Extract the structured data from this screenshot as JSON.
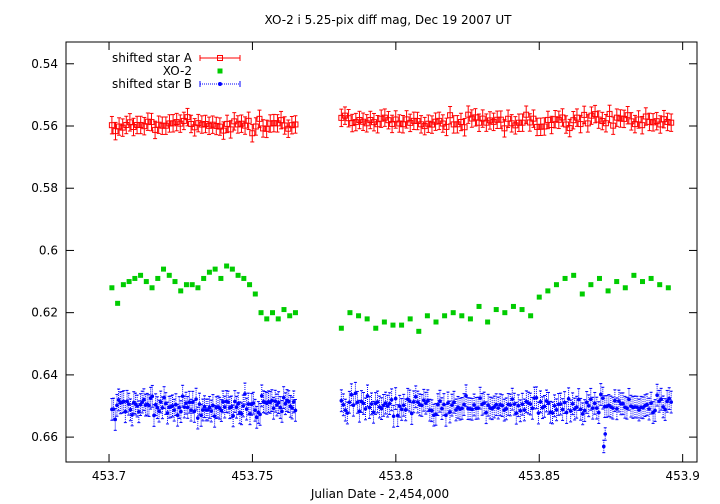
{
  "chart_data": {
    "type": "scatter",
    "title": "XO-2 i 5.25-pix diff mag, Dec 19 2007 UT",
    "xlabel": "Julian Date - 2,454,000",
    "ylabel": "",
    "xlim": [
      453.685,
      453.905
    ],
    "ylim": [
      0.533,
      0.668
    ],
    "y_inverted": true,
    "grid": false,
    "legend_position": "top-left",
    "x_ticks": [
      {
        "value": 453.7,
        "label": "453.7"
      },
      {
        "value": 453.75,
        "label": "453.75"
      },
      {
        "value": 453.8,
        "label": "453.8"
      },
      {
        "value": 453.85,
        "label": "453.85"
      },
      {
        "value": 453.9,
        "label": "453.9"
      }
    ],
    "y_ticks": [
      {
        "value": 0.54,
        "label": "0.54"
      },
      {
        "value": 0.56,
        "label": "0.56"
      },
      {
        "value": 0.58,
        "label": "0.58"
      },
      {
        "value": 0.6,
        "label": "0.6"
      },
      {
        "value": 0.62,
        "label": "0.62"
      },
      {
        "value": 0.64,
        "label": "0.64"
      },
      {
        "value": 0.66,
        "label": "0.66"
      }
    ],
    "series": [
      {
        "name": "shifted star A",
        "color": "#ff0000",
        "marker": "open-square-errorbar",
        "segments": [
          {
            "x_start": 453.701,
            "x_end": 453.765,
            "n": 52,
            "mean": 0.5595,
            "noise": 0.0022,
            "err": 0.0028
          },
          {
            "x_start": 453.781,
            "x_end": 453.896,
            "n": 92,
            "mean": 0.5585,
            "noise": 0.0018,
            "err": 0.0028
          }
        ]
      },
      {
        "name": "XO-2",
        "color": "#00cc00",
        "marker": "filled-square",
        "points": [
          [
            453.701,
            0.612
          ],
          [
            453.703,
            0.617
          ],
          [
            453.705,
            0.611
          ],
          [
            453.707,
            0.61
          ],
          [
            453.709,
            0.609
          ],
          [
            453.711,
            0.608
          ],
          [
            453.713,
            0.61
          ],
          [
            453.715,
            0.612
          ],
          [
            453.717,
            0.609
          ],
          [
            453.719,
            0.606
          ],
          [
            453.721,
            0.608
          ],
          [
            453.723,
            0.61
          ],
          [
            453.725,
            0.613
          ],
          [
            453.727,
            0.611
          ],
          [
            453.729,
            0.611
          ],
          [
            453.731,
            0.612
          ],
          [
            453.733,
            0.609
          ],
          [
            453.735,
            0.607
          ],
          [
            453.737,
            0.606
          ],
          [
            453.739,
            0.609
          ],
          [
            453.741,
            0.605
          ],
          [
            453.743,
            0.606
          ],
          [
            453.745,
            0.608
          ],
          [
            453.747,
            0.609
          ],
          [
            453.749,
            0.611
          ],
          [
            453.751,
            0.614
          ],
          [
            453.753,
            0.62
          ],
          [
            453.755,
            0.622
          ],
          [
            453.757,
            0.62
          ],
          [
            453.759,
            0.622
          ],
          [
            453.761,
            0.619
          ],
          [
            453.763,
            0.621
          ],
          [
            453.765,
            0.62
          ],
          [
            453.781,
            0.625
          ],
          [
            453.784,
            0.62
          ],
          [
            453.787,
            0.621
          ],
          [
            453.79,
            0.622
          ],
          [
            453.793,
            0.625
          ],
          [
            453.796,
            0.623
          ],
          [
            453.799,
            0.624
          ],
          [
            453.802,
            0.624
          ],
          [
            453.805,
            0.622
          ],
          [
            453.808,
            0.626
          ],
          [
            453.811,
            0.621
          ],
          [
            453.814,
            0.623
          ],
          [
            453.817,
            0.621
          ],
          [
            453.82,
            0.62
          ],
          [
            453.823,
            0.621
          ],
          [
            453.826,
            0.622
          ],
          [
            453.829,
            0.618
          ],
          [
            453.832,
            0.623
          ],
          [
            453.835,
            0.619
          ],
          [
            453.838,
            0.62
          ],
          [
            453.841,
            0.618
          ],
          [
            453.844,
            0.619
          ],
          [
            453.847,
            0.621
          ],
          [
            453.85,
            0.615
          ],
          [
            453.853,
            0.613
          ],
          [
            453.856,
            0.611
          ],
          [
            453.859,
            0.609
          ],
          [
            453.862,
            0.608
          ],
          [
            453.865,
            0.614
          ],
          [
            453.868,
            0.611
          ],
          [
            453.871,
            0.609
          ],
          [
            453.874,
            0.613
          ],
          [
            453.877,
            0.61
          ],
          [
            453.88,
            0.612
          ],
          [
            453.883,
            0.608
          ],
          [
            453.886,
            0.61
          ],
          [
            453.889,
            0.609
          ],
          [
            453.892,
            0.611
          ],
          [
            453.895,
            0.612
          ]
        ]
      },
      {
        "name": "shifted star B",
        "color": "#0000ff",
        "marker": "filled-circle-errorbar",
        "segments": [
          {
            "x_start": 453.701,
            "x_end": 453.765,
            "n": 110,
            "mean": 0.65,
            "noise": 0.0028,
            "err": 0.0035
          },
          {
            "x_start": 453.781,
            "x_end": 453.896,
            "n": 165,
            "mean": 0.65,
            "noise": 0.0025,
            "err": 0.0035
          }
        ],
        "outliers": [
          [
            453.8725,
            0.663
          ],
          [
            453.873,
            0.659
          ]
        ]
      }
    ]
  }
}
